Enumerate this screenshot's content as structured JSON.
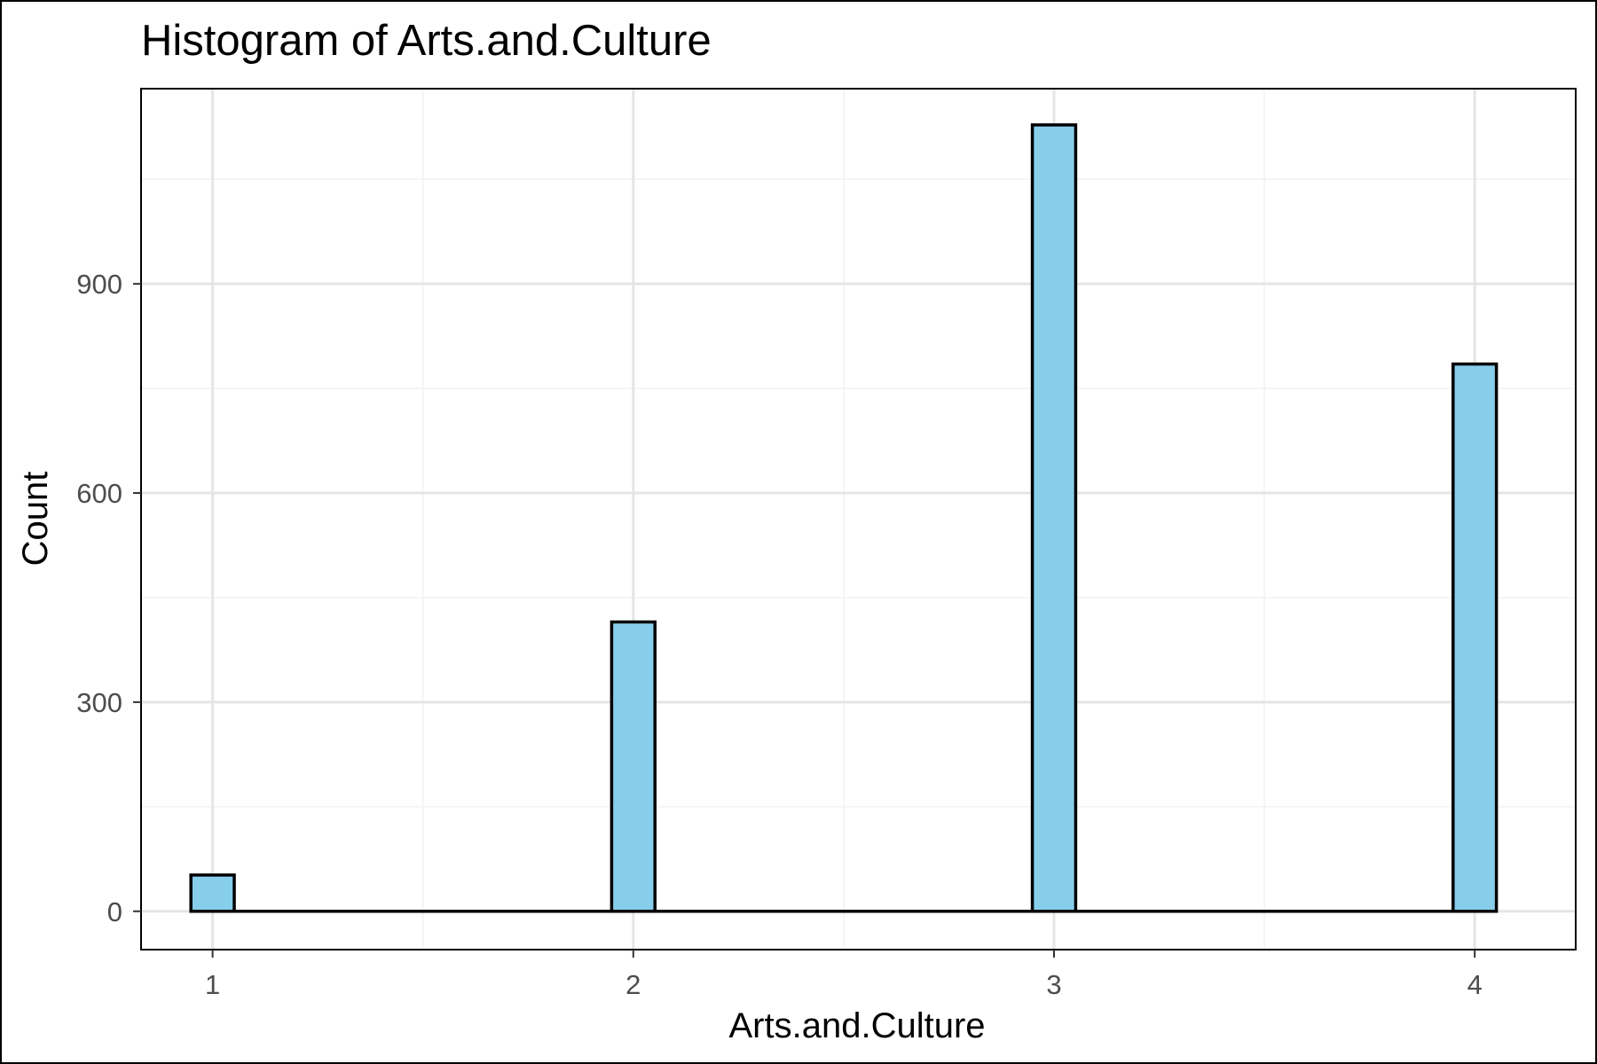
{
  "chart_data": {
    "type": "bar",
    "title": "Histogram of Arts.and.Culture",
    "xlabel": "Arts.and.Culture",
    "ylabel": "Count",
    "x_ticks": [
      1,
      2,
      3,
      4
    ],
    "y_ticks": [
      0,
      300,
      600,
      900
    ],
    "xlim": [
      0.83,
      4.24
    ],
    "ylim": [
      -55,
      1180
    ],
    "bin_width": 0.103,
    "bins": [
      {
        "x": 1,
        "count": 52
      },
      {
        "x": 2,
        "count": 415
      },
      {
        "x": 3,
        "count": 1128
      },
      {
        "x": 4,
        "count": 785
      }
    ],
    "grid": true,
    "colors": {
      "bar_fill": "#87CEEB",
      "bar_stroke": "#000000",
      "grid_major": "#e5e5e5",
      "grid_minor": "#f2f2f2",
      "panel_border": "#000000"
    }
  }
}
